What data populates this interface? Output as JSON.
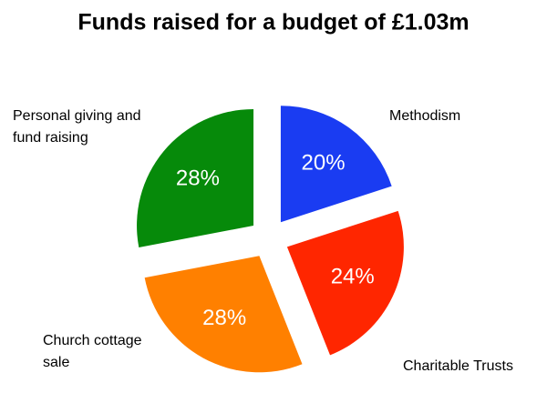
{
  "chart_data": {
    "type": "pie",
    "title": "Funds raised for a budget of £1.03m",
    "categories": [
      "Methodism",
      "Charitable Trusts",
      "Church cottage sale",
      "Personal giving and fund raising"
    ],
    "values": [
      20,
      24,
      28,
      28
    ],
    "value_labels": [
      "20%",
      "24%",
      "28%",
      "28%"
    ],
    "colors": [
      "#1a3cf2",
      "#ff2600",
      "#ff8000",
      "#068a0a"
    ],
    "exploded": true
  }
}
